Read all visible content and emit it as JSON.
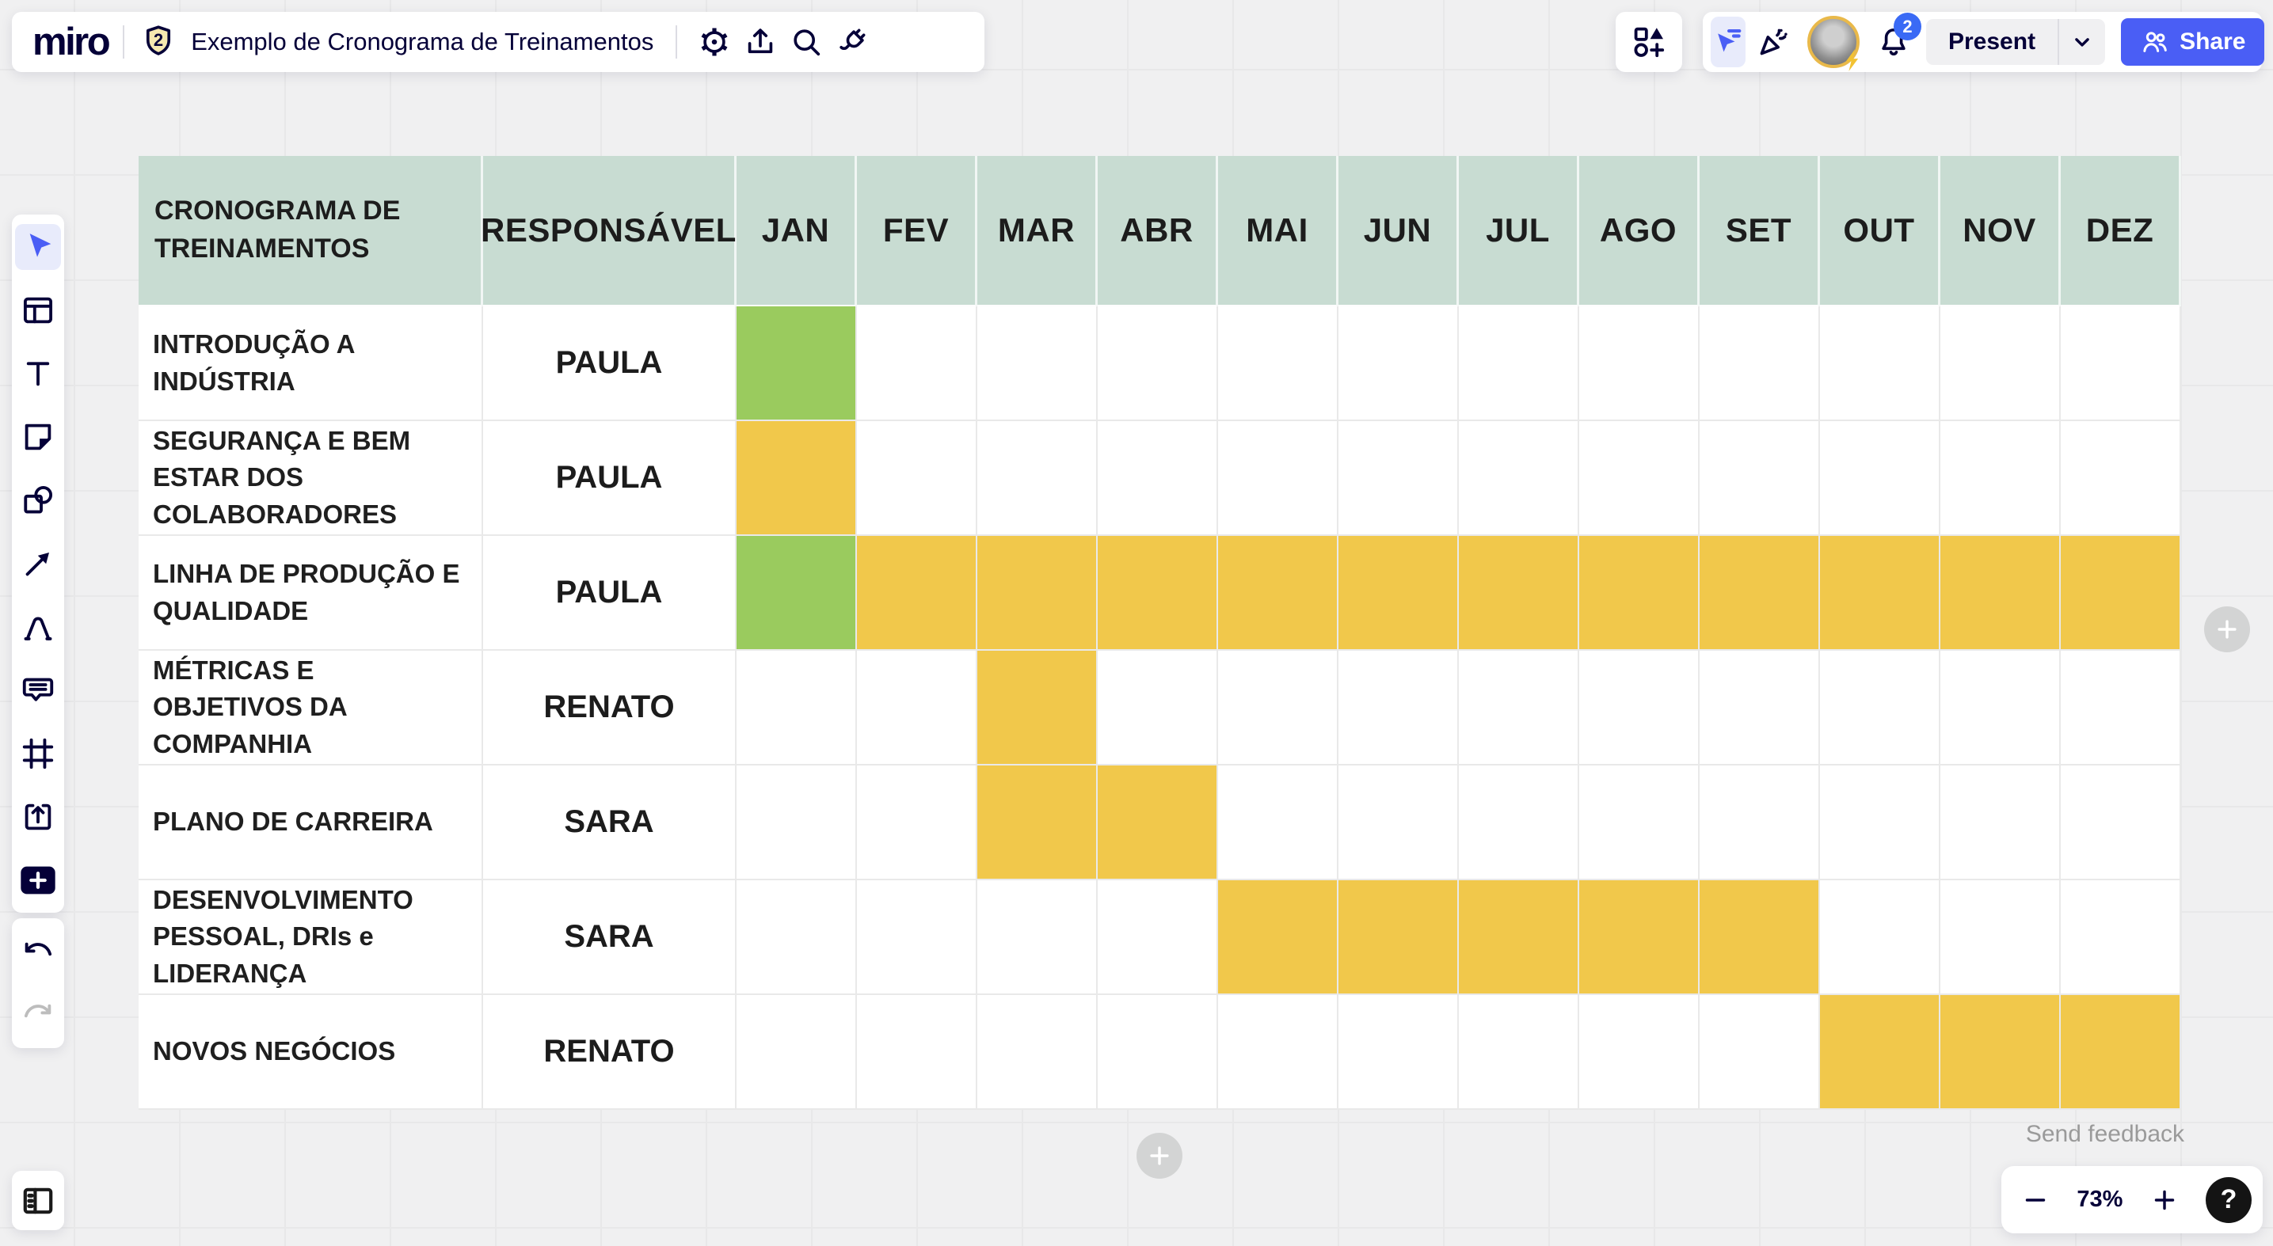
{
  "topbar": {
    "logo": "miro",
    "plan_badge": "2",
    "board_title": "Exemplo de Cronograma de Treinamentos",
    "present_label": "Present",
    "share_label": "Share",
    "notifications_count": "2"
  },
  "toolbar": {
    "tools": [
      "select",
      "templates",
      "text",
      "sticky-note",
      "shapes",
      "connection-line",
      "pen",
      "comment",
      "frame",
      "upload",
      "add-more"
    ],
    "active_tool": "select"
  },
  "canvas": {
    "send_feedback": "Send feedback",
    "zoom_level": "73%"
  },
  "chart_data": {
    "type": "table",
    "title": "CRONOGRAMA DE TREINAMENTOS",
    "owner_column_label": "RESPONSÁVEL",
    "months": [
      "JAN",
      "FEV",
      "MAR",
      "ABR",
      "MAI",
      "JUN",
      "JUL",
      "AGO",
      "SET",
      "OUT",
      "NOV",
      "DEZ"
    ],
    "legend": {
      "g": "#9ACB5E",
      "y": "#F1C84B"
    },
    "rows": [
      {
        "task": "INTRODUÇÃO A INDÚSTRIA",
        "owner": "PAULA",
        "cells": [
          "g",
          "",
          "",
          "",
          "",
          "",
          "",
          "",
          "",
          "",
          "",
          ""
        ]
      },
      {
        "task": "SEGURANÇA E BEM ESTAR DOS COLABORADORES",
        "owner": "PAULA",
        "cells": [
          "y",
          "",
          "",
          "",
          "",
          "",
          "",
          "",
          "",
          "",
          "",
          ""
        ]
      },
      {
        "task": "LINHA DE PRODUÇÃO E QUALIDADE",
        "owner": "PAULA",
        "cells": [
          "g",
          "y",
          "y",
          "y",
          "y",
          "y",
          "y",
          "y",
          "y",
          "y",
          "y",
          "y"
        ]
      },
      {
        "task": "MÉTRICAS E OBJETIVOS DA COMPANHIA",
        "owner": "RENATO",
        "cells": [
          "",
          "",
          "y",
          "",
          "",
          "",
          "",
          "",
          "",
          "",
          "",
          ""
        ]
      },
      {
        "task": "PLANO DE CARREIRA",
        "owner": "SARA",
        "cells": [
          "",
          "",
          "y",
          "y",
          "",
          "",
          "",
          "",
          "",
          "",
          "",
          ""
        ]
      },
      {
        "task": "DESENVOLVIMENTO PESSOAL, DRIs e LIDERANÇA",
        "owner": "SARA",
        "cells": [
          "",
          "",
          "",
          "",
          "y",
          "y",
          "y",
          "y",
          "y",
          "",
          "",
          ""
        ]
      },
      {
        "task": "NOVOS NEGÓCIOS",
        "owner": "RENATO",
        "cells": [
          "",
          "",
          "",
          "",
          "",
          "",
          "",
          "",
          "",
          "y",
          "y",
          "y"
        ]
      }
    ]
  },
  "colors": {
    "brand_navy": "#050038",
    "accent_blue": "#4A5EF5",
    "header_teal": "#C8DCD2",
    "green": "#9ACB5E",
    "yellow": "#F1C84B"
  }
}
